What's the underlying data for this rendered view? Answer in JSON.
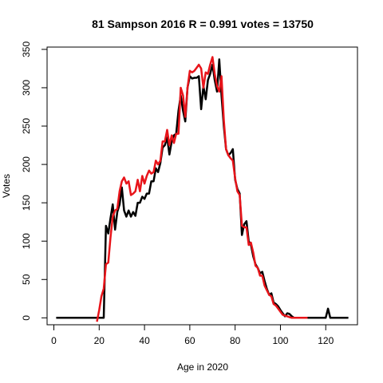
{
  "chart_data": {
    "type": "line",
    "title": "81 Sampson 2016 R = 0.991 votes = 13750",
    "xlabel": "Age in 2020",
    "ylabel": "Votes",
    "xlim": [
      -3,
      134
    ],
    "ylim": [
      -9,
      353
    ],
    "x_ticks": [
      0,
      20,
      40,
      60,
      80,
      100,
      120
    ],
    "y_ticks": [
      0,
      50,
      100,
      150,
      200,
      250,
      300,
      350
    ],
    "grid": false,
    "legend": "none",
    "series": [
      {
        "color": "#000000",
        "points": [
          [
            1,
            0
          ],
          [
            10,
            0
          ],
          [
            20,
            0
          ],
          [
            21,
            0
          ],
          [
            22,
            0
          ],
          [
            23,
            120
          ],
          [
            24,
            110
          ],
          [
            25,
            130
          ],
          [
            26,
            148
          ],
          [
            27,
            115
          ],
          [
            28,
            138
          ],
          [
            29,
            148
          ],
          [
            30,
            170
          ],
          [
            31,
            140
          ],
          [
            32,
            132
          ],
          [
            33,
            140
          ],
          [
            34,
            132
          ],
          [
            35,
            138
          ],
          [
            36,
            133
          ],
          [
            37,
            150
          ],
          [
            38,
            150
          ],
          [
            39,
            158
          ],
          [
            40,
            155
          ],
          [
            41,
            162
          ],
          [
            42,
            162
          ],
          [
            43,
            178
          ],
          [
            44,
            178
          ],
          [
            45,
            195
          ],
          [
            46,
            190
          ],
          [
            47,
            202
          ],
          [
            48,
            222
          ],
          [
            49,
            225
          ],
          [
            50,
            235
          ],
          [
            51,
            213
          ],
          [
            52,
            230
          ],
          [
            53,
            238
          ],
          [
            54,
            240
          ],
          [
            55,
            270
          ],
          [
            56,
            290
          ],
          [
            57,
            270
          ],
          [
            58,
            256
          ],
          [
            59,
            300
          ],
          [
            60,
            315
          ],
          [
            61,
            312
          ],
          [
            62,
            313
          ],
          [
            63,
            313
          ],
          [
            64,
            315
          ],
          [
            65,
            272
          ],
          [
            66,
            302
          ],
          [
            67,
            285
          ],
          [
            68,
            310
          ],
          [
            69,
            318
          ],
          [
            70,
            330
          ],
          [
            71,
            310
          ],
          [
            72,
            295
          ],
          [
            73,
            337
          ],
          [
            74,
            290
          ],
          [
            75,
            250
          ],
          [
            76,
            220
          ],
          [
            77,
            212
          ],
          [
            78,
            215
          ],
          [
            79,
            220
          ],
          [
            80,
            180
          ],
          [
            81,
            168
          ],
          [
            82,
            162
          ],
          [
            83,
            108
          ],
          [
            84,
            122
          ],
          [
            85,
            126
          ],
          [
            86,
            100
          ],
          [
            87,
            95
          ],
          [
            88,
            80
          ],
          [
            89,
            70
          ],
          [
            90,
            65
          ],
          [
            91,
            58
          ],
          [
            92,
            60
          ],
          [
            93,
            48
          ],
          [
            94,
            38
          ],
          [
            95,
            30
          ],
          [
            96,
            32
          ],
          [
            97,
            20
          ],
          [
            98,
            18
          ],
          [
            99,
            15
          ],
          [
            100,
            10
          ],
          [
            101,
            6
          ],
          [
            102,
            2
          ],
          [
            103,
            6
          ],
          [
            104,
            5
          ],
          [
            105,
            2
          ],
          [
            106,
            0
          ],
          [
            110,
            0
          ],
          [
            120,
            0
          ],
          [
            121,
            12
          ],
          [
            122,
            0
          ],
          [
            125,
            0
          ],
          [
            130,
            0
          ]
        ]
      },
      {
        "color": "#e8141a",
        "points": [
          [
            19,
            -5
          ],
          [
            20,
            10
          ],
          [
            21,
            28
          ],
          [
            22,
            38
          ],
          [
            23,
            70
          ],
          [
            24,
            72
          ],
          [
            25,
            105
          ],
          [
            26,
            132
          ],
          [
            27,
            140
          ],
          [
            28,
            142
          ],
          [
            29,
            165
          ],
          [
            30,
            178
          ],
          [
            31,
            183
          ],
          [
            32,
            175
          ],
          [
            33,
            178
          ],
          [
            34,
            160
          ],
          [
            35,
            162
          ],
          [
            36,
            165
          ],
          [
            37,
            180
          ],
          [
            38,
            165
          ],
          [
            39,
            185
          ],
          [
            40,
            175
          ],
          [
            41,
            185
          ],
          [
            42,
            192
          ],
          [
            43,
            188
          ],
          [
            44,
            190
          ],
          [
            45,
            205
          ],
          [
            46,
            200
          ],
          [
            47,
            205
          ],
          [
            48,
            230
          ],
          [
            49,
            230
          ],
          [
            50,
            245
          ],
          [
            51,
            225
          ],
          [
            52,
            238
          ],
          [
            53,
            228
          ],
          [
            54,
            240
          ],
          [
            55,
            240
          ],
          [
            56,
            300
          ],
          [
            57,
            290
          ],
          [
            58,
            262
          ],
          [
            59,
            300
          ],
          [
            60,
            322
          ],
          [
            61,
            320
          ],
          [
            62,
            322
          ],
          [
            63,
            326
          ],
          [
            64,
            330
          ],
          [
            65,
            325
          ],
          [
            66,
            300
          ],
          [
            67,
            320
          ],
          [
            68,
            318
          ],
          [
            69,
            330
          ],
          [
            70,
            340
          ],
          [
            71,
            318
          ],
          [
            72,
            302
          ],
          [
            73,
            295
          ],
          [
            74,
            315
          ],
          [
            75,
            258
          ],
          [
            76,
            220
          ],
          [
            77,
            212
          ],
          [
            78,
            208
          ],
          [
            79,
            205
          ],
          [
            80,
            182
          ],
          [
            81,
            165
          ],
          [
            82,
            160
          ],
          [
            83,
            120
          ],
          [
            84,
            118
          ],
          [
            85,
            118
          ],
          [
            86,
            95
          ],
          [
            87,
            98
          ],
          [
            88,
            85
          ],
          [
            89,
            68
          ],
          [
            90,
            65
          ],
          [
            91,
            55
          ],
          [
            92,
            55
          ],
          [
            93,
            42
          ],
          [
            94,
            36
          ],
          [
            95,
            30
          ],
          [
            96,
            28
          ],
          [
            97,
            18
          ],
          [
            98,
            16
          ],
          [
            99,
            12
          ],
          [
            100,
            8
          ],
          [
            101,
            4
          ],
          [
            102,
            3
          ],
          [
            103,
            2
          ],
          [
            104,
            1
          ],
          [
            105,
            0
          ],
          [
            110,
            0
          ],
          [
            112,
            0
          ]
        ]
      }
    ]
  }
}
